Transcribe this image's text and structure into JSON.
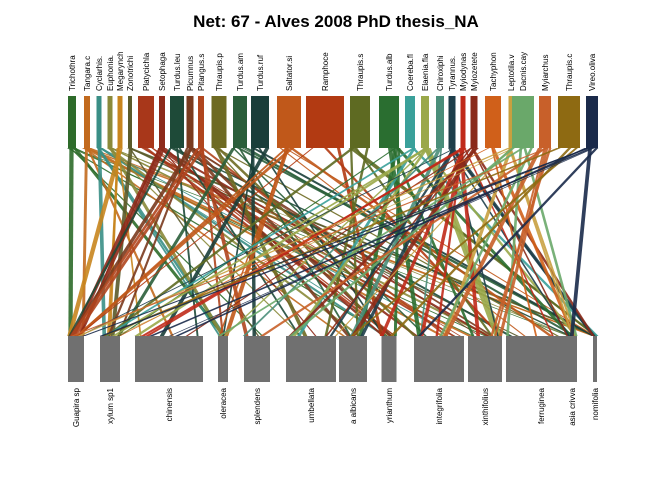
{
  "title": "Net: 67 - Alves 2008 PhD thesis_NA",
  "higher_level": [
    {
      "label": "Trichothra",
      "color": "#2e6b2a"
    },
    {
      "label": "Tangara.c",
      "color": "#c26a1e"
    },
    {
      "label": "Cyclarhis.",
      "color": "#3a8f86"
    },
    {
      "label": "Euphonia.",
      "color": "#8a8a3a"
    },
    {
      "label": "Megarynch",
      "color": "#c8851e"
    },
    {
      "label": "Zonotrichi",
      "color": "#5a5a2a"
    },
    {
      "label": "Platycichla",
      "color": "#a8371a"
    },
    {
      "label": "Setophaga",
      "color": "#8e2a1a"
    },
    {
      "label": "Turdus.leu",
      "color": "#1e4a38"
    },
    {
      "label": "Picumnus",
      "color": "#7a3a1e"
    },
    {
      "label": "Pitangus.s",
      "color": "#b0451e"
    },
    {
      "label": "Thraupis.p",
      "color": "#6e6a22"
    },
    {
      "label": "Turdus.am",
      "color": "#2a5e3a"
    },
    {
      "label": "Turdus.ruf",
      "color": "#1a3e3a"
    },
    {
      "label": "Saltator.si",
      "color": "#c0581a"
    },
    {
      "label": "Ramphoce",
      "color": "#b23a12"
    },
    {
      "label": "Thraupis.s",
      "color": "#5e6a22"
    },
    {
      "label": "Turdus.alb",
      "color": "#2a6e30"
    },
    {
      "label": "Coereba.fl",
      "color": "#3aa09a"
    },
    {
      "label": "Elaenia.fla",
      "color": "#9aa84a"
    },
    {
      "label": "Chiroxiphi",
      "color": "#4a8e7a"
    },
    {
      "label": "Tyrannus.",
      "color": "#1e3e4a"
    },
    {
      "label": "Myiodynas",
      "color": "#c02a1a"
    },
    {
      "label": "Myiozetete",
      "color": "#8a2a1a"
    },
    {
      "label": "Tachyphon",
      "color": "#d0601a"
    },
    {
      "label": "Leptotila.v",
      "color": "#c8a040"
    },
    {
      "label": "Dacnis.cay",
      "color": "#6aa86a"
    },
    {
      "label": "Myiarchus",
      "color": "#c8602a"
    },
    {
      "label": "Thraupis.c",
      "color": "#8e6a12"
    },
    {
      "label": "Vireo.oliva",
      "color": "#1a2a4a"
    }
  ],
  "lower_level": [
    {
      "label": "Guapira sp"
    },
    {
      "label": "xylum sp1"
    },
    {
      "label": "chinensis"
    },
    {
      "label": "oleracea"
    },
    {
      "label": "splendens"
    },
    {
      "label": "umbellata"
    },
    {
      "label": "a albicans"
    },
    {
      "label": "yrianthum"
    },
    {
      "label": "integrifolia"
    },
    {
      "label": "xinthifolius"
    },
    {
      "label": "ferruginea"
    },
    {
      "label": "asia crivva"
    },
    {
      "label": "nomifolia"
    }
  ],
  "lower_color": "#707070"
}
